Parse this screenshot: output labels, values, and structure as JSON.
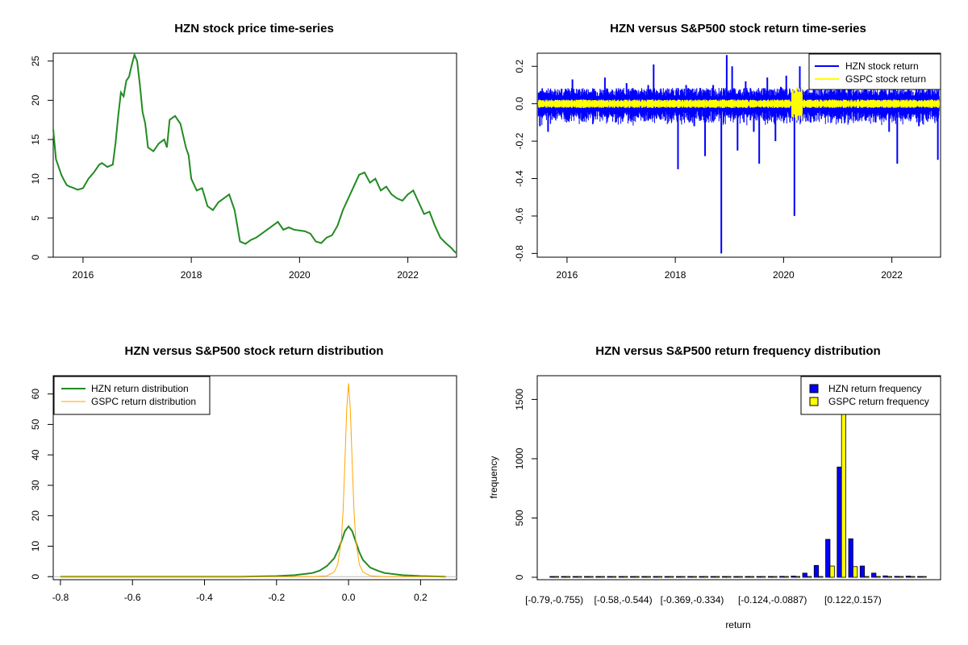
{
  "chart_data": [
    {
      "type": "line",
      "title": "HZN stock price time-series",
      "xlabel": "",
      "ylabel": "",
      "x_ticks": [
        "2016",
        "2018",
        "2020",
        "2022"
      ],
      "y_ticks": [
        0,
        5,
        10,
        15,
        20,
        25
      ],
      "xlim": [
        2015.45,
        2022.9
      ],
      "ylim": [
        0,
        26
      ],
      "color": "#228B22",
      "series": [
        {
          "x": [
            2015.45,
            2015.5,
            2015.55,
            2015.6,
            2015.65,
            2015.7,
            2015.75,
            2015.8,
            2015.9,
            2016.0,
            2016.1,
            2016.2,
            2016.3,
            2016.35,
            2016.45,
            2016.55,
            2016.6,
            2016.65,
            2016.7,
            2016.75,
            2016.8,
            2016.85,
            2016.9,
            2016.95,
            2017.0,
            2017.05,
            2017.1,
            2017.15,
            2017.2,
            2017.3,
            2017.4,
            2017.5,
            2017.55,
            2017.6,
            2017.7,
            2017.8,
            2017.9,
            2017.95,
            2018.0,
            2018.1,
            2018.2,
            2018.3,
            2018.4,
            2018.5,
            2018.6,
            2018.7,
            2018.8,
            2018.9,
            2019.0,
            2019.1,
            2019.2,
            2019.3,
            2019.4,
            2019.5,
            2019.6,
            2019.7,
            2019.8,
            2019.9,
            2020.0,
            2020.1,
            2020.2,
            2020.3,
            2020.4,
            2020.5,
            2020.6,
            2020.7,
            2020.8,
            2020.9,
            2021.0,
            2021.1,
            2021.2,
            2021.3,
            2021.4,
            2021.5,
            2021.6,
            2021.7,
            2021.8,
            2021.9,
            2022.0,
            2022.1,
            2022.2,
            2022.3,
            2022.4,
            2022.5,
            2022.6,
            2022.7,
            2022.8,
            2022.85,
            2022.9
          ],
          "y": [
            16.3,
            12.5,
            11.5,
            10.5,
            9.8,
            9.2,
            9.0,
            8.9,
            8.6,
            8.8,
            10.0,
            10.8,
            11.8,
            12.0,
            11.5,
            11.8,
            14.5,
            18.0,
            21.0,
            20.5,
            22.5,
            23.0,
            24.5,
            25.8,
            25.0,
            22.0,
            18.5,
            17.0,
            14.0,
            13.5,
            14.5,
            15.0,
            14.0,
            17.5,
            18.0,
            17.0,
            14.0,
            13.0,
            10.0,
            8.5,
            8.8,
            6.5,
            6.0,
            7.0,
            7.5,
            8.0,
            6.0,
            2.0,
            1.7,
            2.2,
            2.5,
            3.0,
            3.5,
            4.0,
            4.5,
            3.5,
            3.8,
            3.5,
            3.4,
            3.3,
            3.0,
            2.0,
            1.8,
            2.5,
            2.8,
            4.0,
            6.0,
            7.5,
            9.0,
            10.5,
            10.8,
            9.5,
            10.0,
            8.5,
            9.0,
            8.0,
            7.5,
            7.2,
            8.0,
            8.5,
            7.0,
            5.5,
            5.8,
            4.0,
            2.5,
            1.8,
            1.2,
            0.8,
            0.5
          ]
        }
      ]
    },
    {
      "type": "line",
      "title": "HZN versus S&P500 stock return time-series",
      "xlabel": "",
      "ylabel": "",
      "x_ticks": [
        "2016",
        "2018",
        "2020",
        "2022"
      ],
      "y_ticks": [
        -0.8,
        -0.6,
        -0.4,
        -0.2,
        0.0,
        0.2
      ],
      "xlim": [
        2015.45,
        2022.9
      ],
      "ylim": [
        -0.82,
        0.27
      ],
      "legend_position": "top-right",
      "series": [
        {
          "name": "HZN stock return",
          "color": "#0000FF"
        },
        {
          "name": "GSPC stock return",
          "color": "#FFFF00"
        }
      ],
      "hzn_spikes": [
        {
          "x": 2015.5,
          "y": -0.12
        },
        {
          "x": 2015.6,
          "y": 0.06
        },
        {
          "x": 2015.65,
          "y": -0.15
        },
        {
          "x": 2015.9,
          "y": 0.08
        },
        {
          "x": 2016.1,
          "y": 0.13
        },
        {
          "x": 2016.3,
          "y": -0.08
        },
        {
          "x": 2016.5,
          "y": 0.08
        },
        {
          "x": 2016.7,
          "y": 0.14
        },
        {
          "x": 2016.9,
          "y": -0.1
        },
        {
          "x": 2017.1,
          "y": 0.11
        },
        {
          "x": 2017.3,
          "y": -0.07
        },
        {
          "x": 2017.5,
          "y": 0.1
        },
        {
          "x": 2017.6,
          "y": 0.21
        },
        {
          "x": 2017.9,
          "y": -0.08
        },
        {
          "x": 2018.05,
          "y": -0.35
        },
        {
          "x": 2018.2,
          "y": 0.1
        },
        {
          "x": 2018.35,
          "y": -0.12
        },
        {
          "x": 2018.55,
          "y": -0.28
        },
        {
          "x": 2018.7,
          "y": 0.1
        },
        {
          "x": 2018.85,
          "y": -0.8
        },
        {
          "x": 2018.95,
          "y": 0.26
        },
        {
          "x": 2019.05,
          "y": 0.2
        },
        {
          "x": 2019.15,
          "y": -0.25
        },
        {
          "x": 2019.3,
          "y": 0.12
        },
        {
          "x": 2019.45,
          "y": -0.15
        },
        {
          "x": 2019.55,
          "y": -0.32
        },
        {
          "x": 2019.7,
          "y": 0.14
        },
        {
          "x": 2019.85,
          "y": -0.2
        },
        {
          "x": 2019.95,
          "y": 0.09
        },
        {
          "x": 2020.05,
          "y": 0.15
        },
        {
          "x": 2020.2,
          "y": -0.6
        },
        {
          "x": 2020.3,
          "y": 0.2
        },
        {
          "x": 2020.5,
          "y": -0.1
        },
        {
          "x": 2020.7,
          "y": 0.18
        },
        {
          "x": 2020.9,
          "y": -0.08
        },
        {
          "x": 2021.1,
          "y": 0.1
        },
        {
          "x": 2021.3,
          "y": -0.07
        },
        {
          "x": 2021.5,
          "y": 0.09
        },
        {
          "x": 2021.7,
          "y": -0.1
        },
        {
          "x": 2021.95,
          "y": -0.15
        },
        {
          "x": 2022.1,
          "y": -0.32
        },
        {
          "x": 2022.3,
          "y": 0.08
        },
        {
          "x": 2022.5,
          "y": -0.12
        },
        {
          "x": 2022.7,
          "y": 0.1
        },
        {
          "x": 2022.85,
          "y": -0.3
        }
      ]
    },
    {
      "type": "line",
      "title": "HZN versus S&P500 stock return distribution",
      "xlabel": "",
      "ylabel": "",
      "x_ticks": [
        -0.8,
        -0.6,
        -0.4,
        -0.2,
        0.0,
        0.2
      ],
      "y_ticks": [
        0,
        10,
        20,
        30,
        40,
        50,
        60
      ],
      "xlim": [
        -0.82,
        0.3
      ],
      "ylim": [
        -1,
        66
      ],
      "legend_position": "top-left",
      "series": [
        {
          "name": "HZN return distribution",
          "color": "#228B22",
          "x": [
            -0.8,
            -0.3,
            -0.2,
            -0.15,
            -0.1,
            -0.08,
            -0.06,
            -0.04,
            -0.03,
            -0.02,
            -0.01,
            0.0,
            0.01,
            0.02,
            0.03,
            0.04,
            0.06,
            0.08,
            0.1,
            0.15,
            0.2,
            0.27
          ],
          "y": [
            0,
            0,
            0.2,
            0.5,
            1.2,
            2.0,
            3.5,
            6.0,
            8.5,
            11.5,
            15.0,
            16.5,
            15.0,
            11.5,
            8.0,
            5.5,
            3.0,
            2.0,
            1.2,
            0.5,
            0.2,
            0
          ]
        },
        {
          "name": "GSPC return distribution",
          "color": "#FFA500",
          "x": [
            -0.8,
            -0.1,
            -0.06,
            -0.04,
            -0.03,
            -0.02,
            -0.015,
            -0.01,
            -0.005,
            0.0,
            0.005,
            0.01,
            0.015,
            0.02,
            0.03,
            0.04,
            0.06,
            0.1,
            0.27
          ],
          "y": [
            0,
            0,
            0.3,
            1.5,
            4.0,
            12.0,
            22.0,
            38.0,
            55.0,
            63.5,
            55.0,
            38.0,
            22.0,
            12.0,
            4.0,
            1.5,
            0.3,
            0,
            0
          ]
        }
      ]
    },
    {
      "type": "bar",
      "title": "HZN versus S&P500 return frequency distribution",
      "xlabel": "return",
      "ylabel": "frequency",
      "x_ticks": [
        "[-0.79,-0.755)",
        "[-0.58,-0.544)",
        "[-0.369,-0.334)",
        "[-0.124,-0.0887)",
        "[0.122,0.157)"
      ],
      "y_ticks": [
        0,
        500,
        1000,
        1500
      ],
      "ylim": [
        0,
        1700
      ],
      "legend_position": "top-right",
      "series": [
        {
          "name": "HZN return frequency",
          "color": "#0000FF",
          "values": [
            1,
            1,
            1,
            1,
            1,
            1,
            1,
            1,
            1,
            1,
            1,
            1,
            1,
            1,
            2,
            1,
            2,
            1,
            3,
            5,
            8,
            10,
            35,
            100,
            320,
            930,
            325,
            95,
            35,
            12,
            8,
            10,
            3
          ]
        },
        {
          "name": "GSPC return frequency",
          "color": "#FFFF00",
          "values": [
            0,
            0,
            0,
            0,
            0,
            0,
            0,
            0,
            0,
            0,
            0,
            0,
            0,
            0,
            0,
            0,
            0,
            0,
            0,
            0,
            0,
            0,
            0,
            2,
            95,
            1640,
            90,
            2,
            0,
            0,
            0,
            0,
            0
          ]
        }
      ]
    }
  ]
}
